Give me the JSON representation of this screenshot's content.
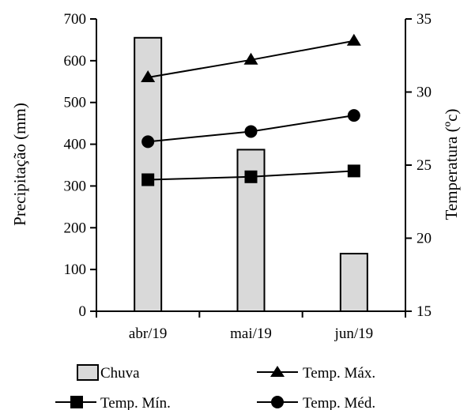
{
  "chart_data": {
    "type": "bar",
    "categories": [
      "abr/19",
      "mai/19",
      "jun/19"
    ],
    "y_left": {
      "label": "Precipitação (mm)",
      "range": [
        0,
        700
      ],
      "ticks": [
        0,
        100,
        200,
        300,
        400,
        500,
        600,
        700
      ],
      "tick_labels": [
        "0",
        "100",
        "200",
        "300",
        "400",
        "500",
        "600",
        "700"
      ]
    },
    "y_right": {
      "label": "Temperatura (ºc)",
      "range": [
        15,
        35
      ],
      "ticks": [
        15,
        20,
        25,
        30,
        35
      ],
      "tick_labels": [
        "15",
        "20",
        "25",
        "30",
        "35"
      ]
    },
    "series": [
      {
        "name": "Chuva",
        "kind": "bar",
        "axis": "left",
        "marker": "none",
        "color": "#d9d9d9",
        "values": [
          655,
          387,
          138
        ]
      },
      {
        "name": "Temp. Máx.",
        "kind": "line",
        "axis": "right",
        "marker": "triangle",
        "color": "#000000",
        "values": [
          31.0,
          32.2,
          33.5
        ]
      },
      {
        "name": "Temp. Mín.",
        "kind": "line",
        "axis": "right",
        "marker": "square",
        "color": "#000000",
        "values": [
          24.0,
          24.2,
          24.6
        ]
      },
      {
        "name": "Temp. Méd.",
        "kind": "line",
        "axis": "right",
        "marker": "circle",
        "color": "#000000",
        "values": [
          26.6,
          27.3,
          28.4
        ]
      }
    ],
    "grid": false,
    "legend_position": "bottom"
  }
}
